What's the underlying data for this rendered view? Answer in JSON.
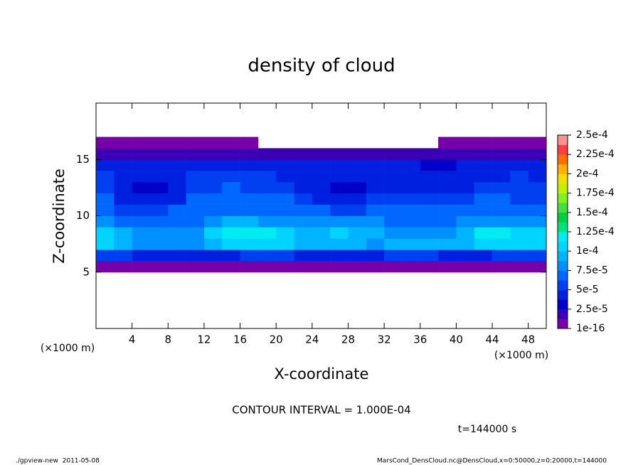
{
  "chart_data": {
    "type": "heatmap",
    "title": "density of cloud",
    "xlabel": "X-coordinate",
    "ylabel": "Z-coordinate",
    "unit_label": "(×1000 m)",
    "annotation": "CONTOUR INTERVAL = 1.000E-04",
    "time_label": "t=144000 s",
    "footer_left": "./gpview-new  2011-05-08",
    "footer_right": "MarsCond_DensCloud.nc@DensCloud,x=0:50000,z=0:20000,t=144000",
    "xlim": [
      0,
      50
    ],
    "ylim": [
      0,
      20
    ],
    "xticks": [
      4,
      8,
      12,
      16,
      20,
      24,
      28,
      32,
      36,
      40,
      44,
      48
    ],
    "yticks": [
      5,
      10,
      15
    ],
    "colorbar_ticks": [
      {
        "value": 1e-16,
        "label": "1e-16"
      },
      {
        "value": 2.5e-05,
        "label": "2.5e-5"
      },
      {
        "value": 5e-05,
        "label": "5e-5"
      },
      {
        "value": 7.5e-05,
        "label": "7.5e-5"
      },
      {
        "value": 0.0001,
        "label": "1e-4"
      },
      {
        "value": 0.000125,
        "label": "1.25e-4"
      },
      {
        "value": 0.00015,
        "label": "1.5e-4"
      },
      {
        "value": 0.000175,
        "label": "1.75e-4"
      },
      {
        "value": 0.0002,
        "label": "2e-4"
      },
      {
        "value": 0.000225,
        "label": "2.25e-4"
      },
      {
        "value": 0.00025,
        "label": "2.5e-4"
      }
    ],
    "colors": [
      "#7800a8",
      "#3c00b4",
      "#0000c8",
      "#0020e0",
      "#0040f0",
      "#0068ff",
      "#0090ff",
      "#00b4ff",
      "#00d4ff",
      "#00ecf0",
      "#00e07c",
      "#00d040",
      "#40e040",
      "#80f020",
      "#c0f000",
      "#f0e000",
      "#ffb000",
      "#ff7000",
      "#ff4040",
      "#ff9090"
    ],
    "x": [
      1,
      3,
      5,
      7,
      9,
      11,
      13,
      15,
      17,
      19,
      21,
      23,
      25,
      27,
      29,
      31,
      33,
      35,
      37,
      39,
      41,
      43,
      45,
      47,
      49
    ],
    "z": [
      5.5,
      6.5,
      7.5,
      8.5,
      9.5,
      10.5,
      11.5,
      12.5,
      13.5,
      14.5,
      15.5,
      16.5
    ],
    "values": [
      [
        5e-06,
        5e-06,
        5e-06,
        5e-06,
        5e-06,
        5e-06,
        5e-06,
        5e-06,
        5e-06,
        5e-06,
        5e-06,
        5e-06,
        5e-06,
        5e-06,
        5e-06,
        5e-06,
        5e-06,
        5e-06,
        5e-06,
        5e-06,
        5e-06,
        5e-06,
        5e-06,
        5e-06,
        5e-06
      ],
      [
        5.5e-05,
        5.5e-05,
        5e-05,
        5e-05,
        5e-05,
        4.5e-05,
        5e-05,
        5e-05,
        5.5e-05,
        5.5e-05,
        5.5e-05,
        5e-05,
        5e-05,
        5e-05,
        5e-05,
        5e-05,
        5.5e-05,
        5.5e-05,
        5.5e-05,
        5e-05,
        5e-05,
        5e-05,
        5.5e-05,
        5.5e-05,
        5.5e-05
      ],
      [
        0.000105,
        0.0001,
        8.5e-05,
        8.5e-05,
        8.5e-05,
        8.5e-05,
        0.0001,
        0.00011,
        0.00011,
        0.00011,
        0.000105,
        0.0001,
        9.5e-05,
        9e-05,
        9e-05,
        8.5e-05,
        9e-05,
        9e-05,
        9e-05,
        9e-05,
        0.0001,
        0.000105,
        0.00011,
        0.00011,
        0.000105
      ],
      [
        0.000105,
        9e-05,
        8e-05,
        8e-05,
        8e-05,
        8.5e-05,
        0.000105,
        0.000115,
        0.00012,
        0.000115,
        0.000105,
        0.0001,
        9.5e-05,
        0.000105,
        9.5e-05,
        9e-05,
        8.5e-05,
        8.5e-05,
        8.5e-05,
        8.5e-05,
        0.0001,
        0.000115,
        0.00012,
        0.00011,
        0.000105
      ],
      [
        8e-05,
        7e-05,
        7e-05,
        7e-05,
        7.5e-05,
        7.5e-05,
        8.5e-05,
        9e-05,
        9e-05,
        8.5e-05,
        8.5e-05,
        8.5e-05,
        8.5e-05,
        8.5e-05,
        8e-05,
        8e-05,
        7.5e-05,
        7.5e-05,
        7.5e-05,
        7.5e-05,
        8e-05,
        8.5e-05,
        8.5e-05,
        8e-05,
        8e-05
      ],
      [
        7e-05,
        6e-05,
        5.5e-05,
        6e-05,
        6.5e-05,
        7e-05,
        7.5e-05,
        7.5e-05,
        7e-05,
        7e-05,
        7e-05,
        7e-05,
        6.5e-05,
        6e-05,
        6e-05,
        6.5e-05,
        7e-05,
        6.5e-05,
        6.5e-05,
        6.5e-05,
        7e-05,
        7e-05,
        7e-05,
        7e-05,
        6.5e-05
      ],
      [
        6.5e-05,
        5e-05,
        4e-05,
        4e-05,
        5e-05,
        6.5e-05,
        7e-05,
        7e-05,
        6.5e-05,
        7e-05,
        6.5e-05,
        6e-05,
        5e-05,
        4.5e-05,
        5e-05,
        5.5e-05,
        5.5e-05,
        6e-05,
        6e-05,
        5.5e-05,
        6e-05,
        6.5e-05,
        6.5e-05,
        6e-05,
        5.5e-05
      ],
      [
        6e-05,
        4.5e-05,
        3.5e-05,
        3.5e-05,
        4e-05,
        5.5e-05,
        6e-05,
        6.5e-05,
        6e-05,
        6e-05,
        5.5e-05,
        5e-05,
        4e-05,
        3.5e-05,
        3.5e-05,
        4e-05,
        4.5e-05,
        4.5e-05,
        4.5e-05,
        4.5e-05,
        5e-05,
        5.5e-05,
        6e-05,
        6e-05,
        5.5e-05
      ],
      [
        5.5e-05,
        4.5e-05,
        4e-05,
        4.5e-05,
        5e-05,
        5.5e-05,
        6e-05,
        6e-05,
        5.5e-05,
        5.5e-05,
        5e-05,
        5e-05,
        4.5e-05,
        4e-05,
        4e-05,
        4.5e-05,
        5e-05,
        4.5e-05,
        4e-05,
        4e-05,
        4.5e-05,
        5e-05,
        5e-05,
        5.5e-05,
        5e-05
      ],
      [
        4e-05,
        4e-05,
        4e-05,
        4.5e-05,
        4.5e-05,
        4.5e-05,
        5e-05,
        5e-05,
        4.5e-05,
        4.5e-05,
        4e-05,
        4e-05,
        4e-05,
        4e-05,
        4e-05,
        4.5e-05,
        4e-05,
        4e-05,
        3.5e-05,
        3.5e-05,
        4e-05,
        4.5e-05,
        4.5e-05,
        4.5e-05,
        4e-05
      ],
      [
        1.5e-05,
        1.5e-05,
        1.5e-05,
        1.5e-05,
        1.5e-05,
        1.5e-05,
        1.5e-05,
        1.5e-05,
        1.5e-05,
        1.5e-05,
        1.5e-05,
        1.5e-05,
        1.5e-05,
        1.5e-05,
        1.5e-05,
        1.5e-05,
        1.5e-05,
        1.5e-05,
        1.5e-05,
        1.5e-05,
        1.5e-05,
        1.5e-05,
        1.5e-05,
        1.5e-05,
        1.5e-05
      ],
      [
        5e-06,
        5e-06,
        5e-06,
        5e-06,
        5e-06,
        5e-06,
        5e-06,
        5e-06,
        5e-06,
        null,
        null,
        null,
        null,
        null,
        null,
        null,
        null,
        null,
        null,
        5e-06,
        5e-06,
        5e-06,
        5e-06,
        5e-06,
        5e-06
      ]
    ]
  }
}
